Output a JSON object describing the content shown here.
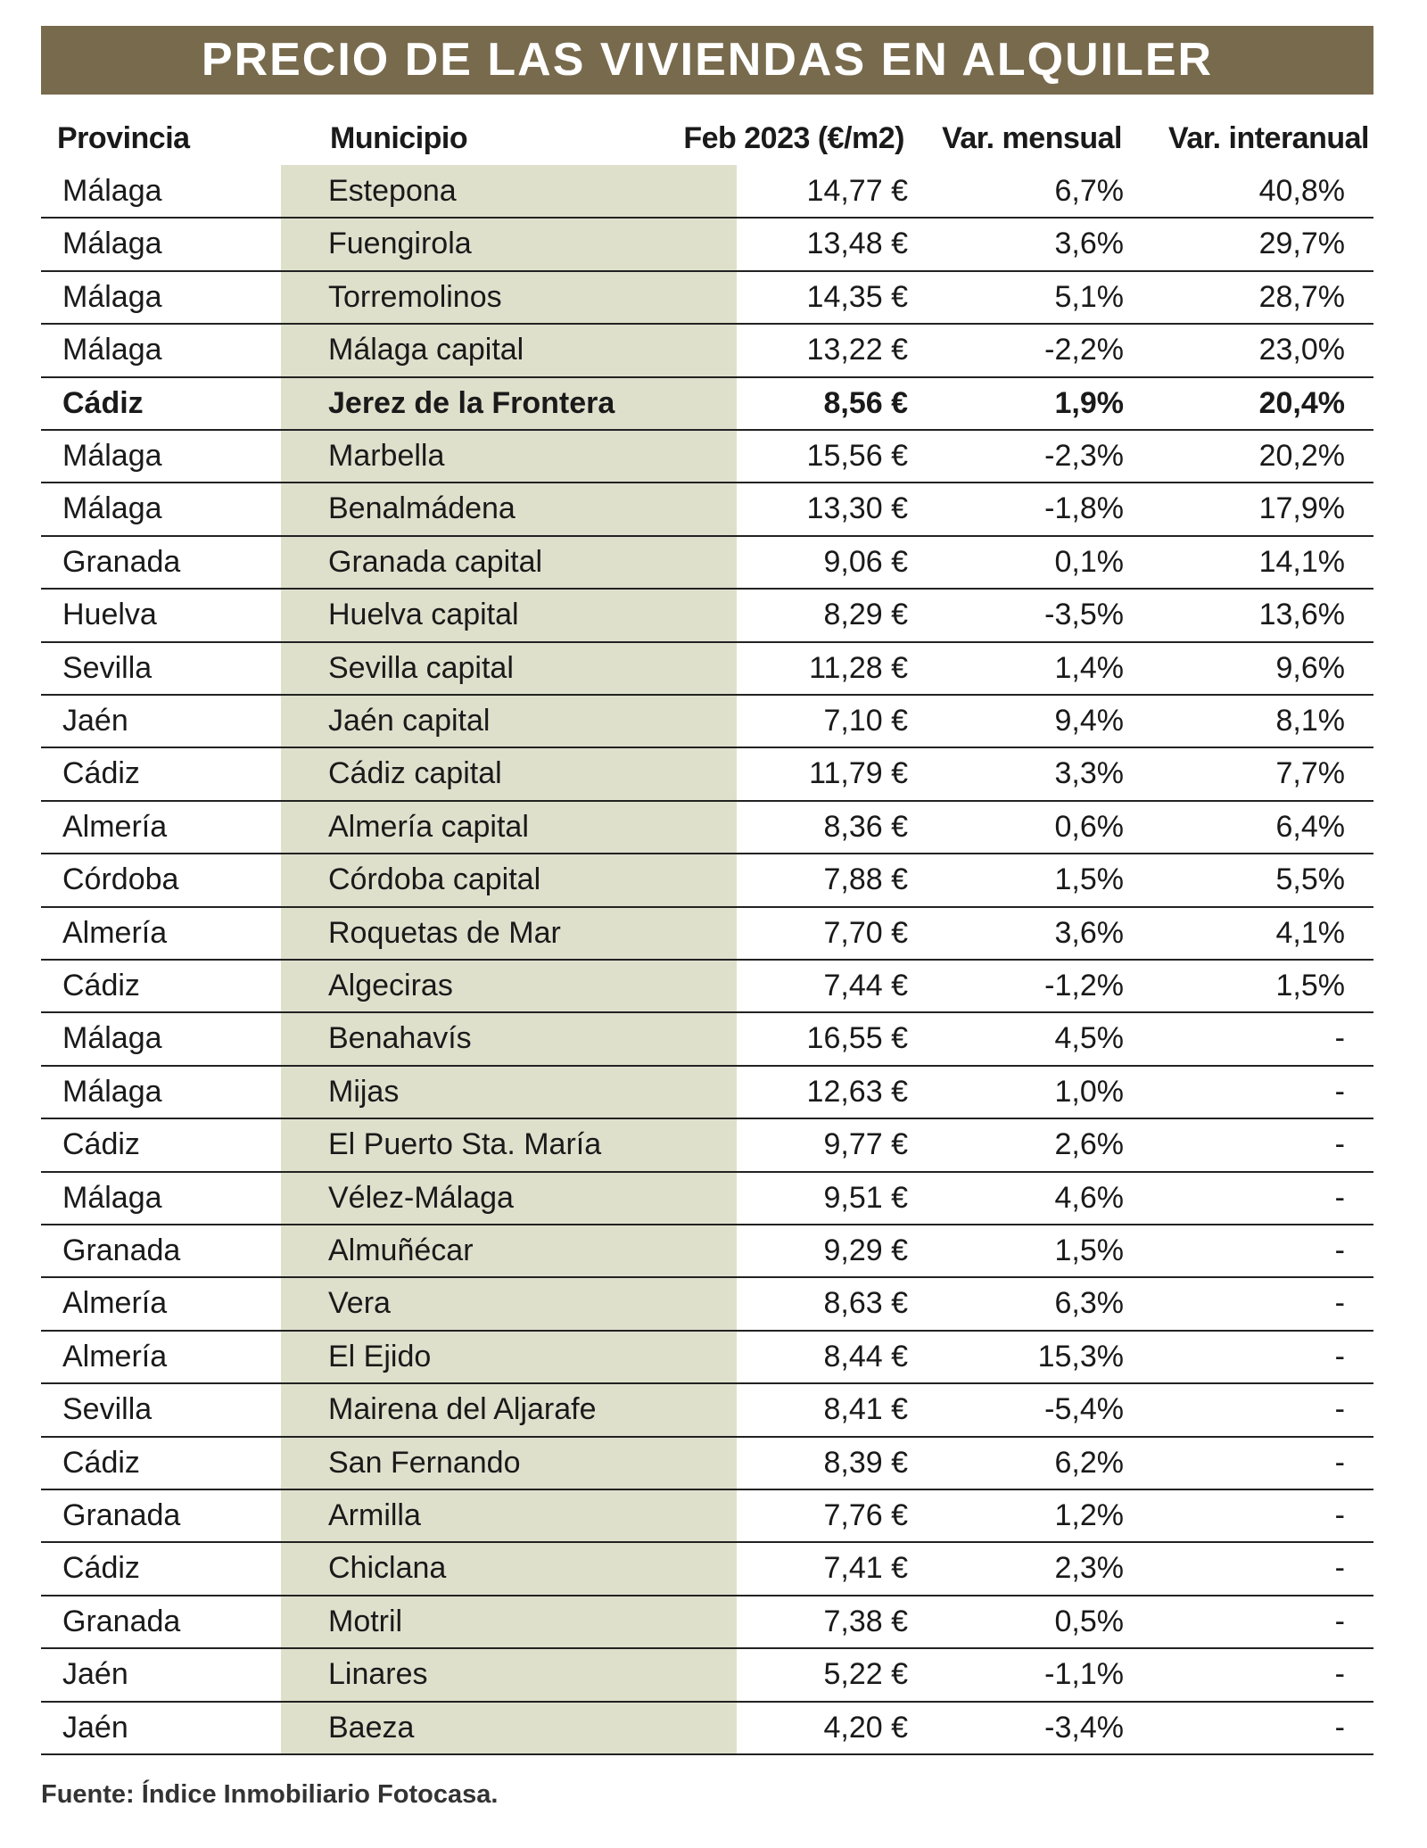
{
  "header": {
    "title": "PRECIO DE LAS VIVIENDAS EN ALQUILER"
  },
  "table": {
    "columns": [
      "Provincia",
      "Municipio",
      "Feb 2023 (€/m2)",
      "Var. mensual",
      "Var. interanual"
    ],
    "bold_row": 4,
    "rows": [
      [
        "Málaga",
        "Estepona",
        "14,77 €",
        "6,7%",
        "40,8%"
      ],
      [
        "Málaga",
        "Fuengirola",
        "13,48 €",
        "3,6%",
        "29,7%"
      ],
      [
        "Málaga",
        "Torremolinos",
        "14,35 €",
        "5,1%",
        "28,7%"
      ],
      [
        "Málaga",
        "Málaga capital",
        "13,22 €",
        "-2,2%",
        "23,0%"
      ],
      [
        "Cádiz",
        "Jerez de la Frontera",
        "8,56 €",
        "1,9%",
        "20,4%"
      ],
      [
        "Málaga",
        "Marbella",
        "15,56 €",
        "-2,3%",
        "20,2%"
      ],
      [
        "Málaga",
        "Benalmádena",
        "13,30 €",
        "-1,8%",
        "17,9%"
      ],
      [
        "Granada",
        "Granada capital",
        "9,06 €",
        "0,1%",
        "14,1%"
      ],
      [
        "Huelva",
        "Huelva capital",
        "8,29 €",
        "-3,5%",
        "13,6%"
      ],
      [
        "Sevilla",
        "Sevilla capital",
        "11,28 €",
        "1,4%",
        "9,6%"
      ],
      [
        "Jaén",
        "Jaén capital",
        "7,10 €",
        "9,4%",
        "8,1%"
      ],
      [
        "Cádiz",
        "Cádiz capital",
        "11,79 €",
        "3,3%",
        "7,7%"
      ],
      [
        "Almería",
        "Almería capital",
        "8,36 €",
        "0,6%",
        "6,4%"
      ],
      [
        "Córdoba",
        "Córdoba capital",
        "7,88 €",
        "1,5%",
        "5,5%"
      ],
      [
        "Almería",
        "Roquetas de Mar",
        "7,70 €",
        "3,6%",
        "4,1%"
      ],
      [
        "Cádiz",
        "Algeciras",
        "7,44 €",
        "-1,2%",
        "1,5%"
      ],
      [
        "Málaga",
        "Benahavís",
        "16,55 €",
        "4,5%",
        "-"
      ],
      [
        "Málaga",
        "Mijas",
        "12,63 €",
        "1,0%",
        "-"
      ],
      [
        "Cádiz",
        "El Puerto Sta. María",
        "9,77 €",
        "2,6%",
        "-"
      ],
      [
        "Málaga",
        "Vélez-Málaga",
        "9,51 €",
        "4,6%",
        "-"
      ],
      [
        "Granada",
        "Almuñécar",
        "9,29 €",
        "1,5%",
        "-"
      ],
      [
        "Almería",
        "Vera",
        "8,63 €",
        "6,3%",
        "-"
      ],
      [
        "Almería",
        "El Ejido",
        "8,44 €",
        "15,3%",
        "-"
      ],
      [
        "Sevilla",
        "Mairena del Aljarafe",
        "8,41 €",
        "-5,4%",
        "-"
      ],
      [
        "Cádiz",
        "San Fernando",
        "8,39 €",
        "6,2%",
        "-"
      ],
      [
        "Granada",
        "Armilla",
        "7,76 €",
        "1,2%",
        "-"
      ],
      [
        "Cádiz",
        "Chiclana",
        "7,41 €",
        "2,3%",
        "-"
      ],
      [
        "Granada",
        "Motril",
        "7,38 €",
        "0,5%",
        "-"
      ],
      [
        "Jaén",
        "Linares",
        "5,22 €",
        "-1,1%",
        "-"
      ],
      [
        "Jaén",
        "Baeza",
        "4,20 €",
        "-3,4%",
        "-"
      ]
    ]
  },
  "footer": {
    "source": "Fuente: Índice Inmobiliario Fotocasa."
  }
}
